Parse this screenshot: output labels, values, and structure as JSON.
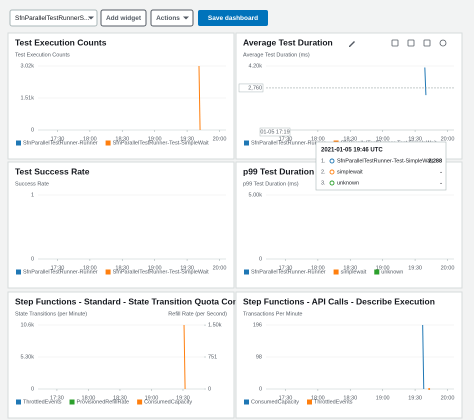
{
  "toolbar": {
    "dashboard_select": "SfnParallelTestRunnerS...",
    "add_widget": "Add widget",
    "actions": "Actions",
    "save": "Save dashboard"
  },
  "chart_data": [
    {
      "type": "line",
      "title": "Test Execution Counts",
      "ylabel": "Test Execution Counts",
      "xlim": [
        "17:12",
        "20:06"
      ],
      "xticks": [
        "17:30",
        "18:00",
        "18:30",
        "19:00",
        "19:30",
        "20:00"
      ],
      "ylim": [
        0,
        3020
      ],
      "yticks": [
        0,
        {
          "value": 1510,
          "label": "1.51k"
        },
        {
          "value": 3020,
          "label": "3.02k"
        }
      ],
      "series": [
        {
          "name": "SfnParallelTestRunner-Runner",
          "color": "#1f77b4",
          "x": [],
          "values": []
        },
        {
          "name": "SfnParallelTestRunner-Test-SimpleWait",
          "color": "#ff7f0e",
          "x": [
            "19:41",
            "19:42"
          ],
          "values": [
            3020,
            0
          ]
        }
      ]
    },
    {
      "type": "line",
      "title": "Average Test Duration",
      "ylabel": "Average Test Duration (ms)",
      "xlim": [
        "17:12",
        "20:06"
      ],
      "xticks": [
        "17:30",
        "18:00",
        "18:30",
        "19:00",
        "19:30",
        "20:00"
      ],
      "ylim": [
        0,
        4200
      ],
      "yticks": [
        {
          "value": 4200,
          "label": "4.20k"
        }
      ],
      "series": [
        {
          "name": "SfnParallelTestRunner-Runner",
          "color": "#1f77b4",
          "x": [
            "19:39",
            "19:40"
          ],
          "values": [
            4100,
            2288
          ]
        },
        {
          "name": "SfnParallelTestRunner-Test-SimpleWait",
          "color": "#ff7f0e",
          "x": [],
          "values": []
        }
      ],
      "hover": {
        "y": {
          "value": 2760,
          "label": "2,760"
        },
        "x_label": "01-05 17:19"
      },
      "tooltip": {
        "title": "2021-01-05 19:46 UTC",
        "rows": [
          {
            "index": "1.",
            "name": "SfnParallelTestRunner-Test-SimpleWait",
            "color": "#1f77b4",
            "value": "2,288"
          },
          {
            "index": "2.",
            "name": "simplewait",
            "color": "#ff7f0e",
            "value": "-"
          },
          {
            "index": "3.",
            "name": "unknown",
            "color": "#2ca02c",
            "value": "-"
          }
        ]
      }
    },
    {
      "type": "line",
      "title": "Test Success Rate",
      "ylabel": "Success Rate",
      "xlim": [
        "17:12",
        "20:06"
      ],
      "xticks": [
        "17:30",
        "18:00",
        "18:30",
        "19:00",
        "19:30",
        "20:00"
      ],
      "ylim": [
        0,
        1
      ],
      "yticks": [
        0,
        1
      ],
      "series": [
        {
          "name": "SfnParallelTestRunner-Runner",
          "color": "#1f77b4",
          "x": [],
          "values": []
        },
        {
          "name": "SfnParallelTestRunner-Test-SimpleWait",
          "color": "#ff7f0e",
          "x": [],
          "values": []
        }
      ]
    },
    {
      "type": "line",
      "title": "p99 Test Duration",
      "ylabel": "p99 Test Duration (ms)",
      "xlim": [
        "17:12",
        "20:06"
      ],
      "xticks": [
        "17:30",
        "18:00",
        "18:30",
        "19:00",
        "19:30",
        "20:00"
      ],
      "ylim": [
        0,
        5000
      ],
      "yticks": [
        0,
        {
          "value": 5000,
          "label": "5.00k"
        }
      ],
      "series": [
        {
          "name": "SfnParallelTestRunner-Runner",
          "color": "#1f77b4",
          "x": [],
          "values": []
        },
        {
          "name": "simplewait",
          "color": "#ff7f0e",
          "x": [],
          "values": []
        },
        {
          "name": "unknown",
          "color": "#2ca02c",
          "x": [],
          "values": []
        }
      ]
    },
    {
      "type": "line",
      "title": "Step Functions - Standard - State Transition Quota Con...",
      "ylabel": "State Transitions (per Minute)",
      "y2label": "Refill Rate (per Second)",
      "xlim": [
        "17:12",
        "19:50"
      ],
      "xticks": [
        "17:30",
        "18:00",
        "18:30",
        "19:00",
        "19:30"
      ],
      "ylim": [
        0,
        10600
      ],
      "yticks": [
        0,
        {
          "value": 5300,
          "label": "5.30k"
        },
        {
          "value": 10600,
          "label": "10.6k"
        }
      ],
      "y2lim": [
        0,
        1502
      ],
      "y2ticks": [
        0,
        751,
        {
          "value": 1500,
          "label": "1.50k"
        }
      ],
      "series": [
        {
          "name": "ThrottledEvents",
          "color": "#1f77b4",
          "x": [],
          "values": []
        },
        {
          "name": "ProvisionedRefillRate",
          "color": "#2ca02c",
          "axis": "y2",
          "x": [],
          "values": []
        },
        {
          "name": "ConsumedCapacity",
          "color": "#ff7f0e",
          "x": [
            "19:31",
            "19:32"
          ],
          "values": [
            10600,
            0
          ]
        }
      ]
    },
    {
      "type": "line",
      "title": "Step Functions - API Calls - Describe Execution",
      "ylabel": "Transactions Per Minute",
      "xlim": [
        "17:12",
        "20:06"
      ],
      "xticks": [
        "17:30",
        "18:00",
        "18:30",
        "19:00",
        "19:30",
        "20:00"
      ],
      "ylim": [
        0,
        196
      ],
      "yticks": [
        0,
        98,
        196
      ],
      "series": [
        {
          "name": "ConsumedCapacity",
          "color": "#1f77b4",
          "x": [
            "19:37",
            "19:38"
          ],
          "values": [
            196,
            0
          ]
        },
        {
          "name": "ThrottledEvents",
          "color": "#ff7f0e",
          "x": [
            "19:43"
          ],
          "values": [
            0
          ]
        }
      ]
    }
  ]
}
